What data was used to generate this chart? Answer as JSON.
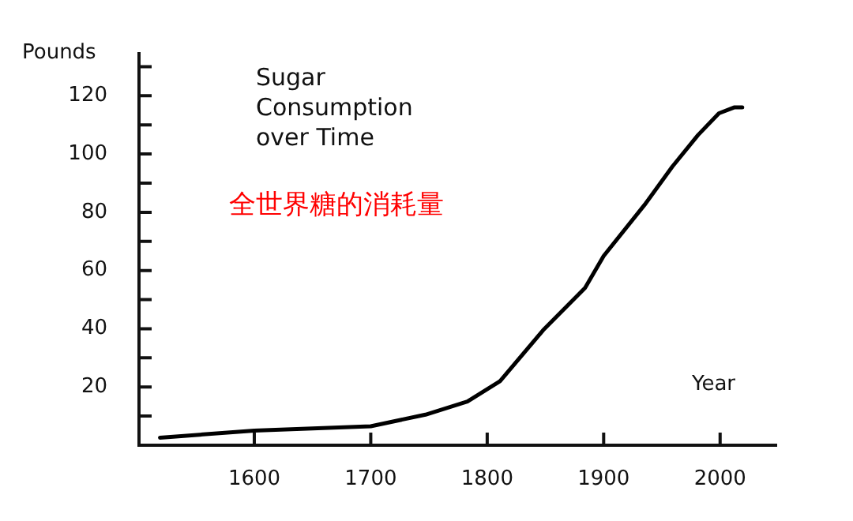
{
  "chart_data": {
    "type": "line",
    "title": "Sugar Consumption over Time",
    "xlabel": "Year",
    "ylabel": "Pounds",
    "annotations": [
      "全世界糖的消耗量"
    ],
    "x": [
      1519,
      1600,
      1700,
      1747,
      1783,
      1811,
      1848,
      1884,
      1900,
      1936,
      1959,
      1981,
      1999,
      2012,
      2019
    ],
    "series": [
      {
        "color": "#000000",
        "values": [
          2.6,
          5,
          6.5,
          10.5,
          15,
          22,
          39.5,
          54,
          65,
          83,
          95.7,
          106.5,
          114,
          116,
          116
        ]
      }
    ],
    "xlim": [
      1501,
      2049
    ],
    "xticks": [
      {
        "value": 1600,
        "label": "1600"
      },
      {
        "value": 1700,
        "label": "1700"
      },
      {
        "value": 1800,
        "label": "1800"
      },
      {
        "value": 1900,
        "label": "1900"
      },
      {
        "value": 2000,
        "label": "2000"
      }
    ],
    "ylim": [
      0,
      135
    ],
    "yticks": [
      {
        "value": 10,
        "label": null
      },
      20,
      {
        "value": 30,
        "label": null
      },
      40,
      {
        "value": 50,
        "label": null
      },
      60,
      {
        "value": 70,
        "label": null
      },
      80,
      {
        "value": 90,
        "label": null
      },
      100,
      {
        "value": 110,
        "label": null
      },
      120,
      {
        "value": 130,
        "label": null
      }
    ],
    "grid": false,
    "legend": false,
    "marker": "none",
    "line_style": "solid"
  }
}
